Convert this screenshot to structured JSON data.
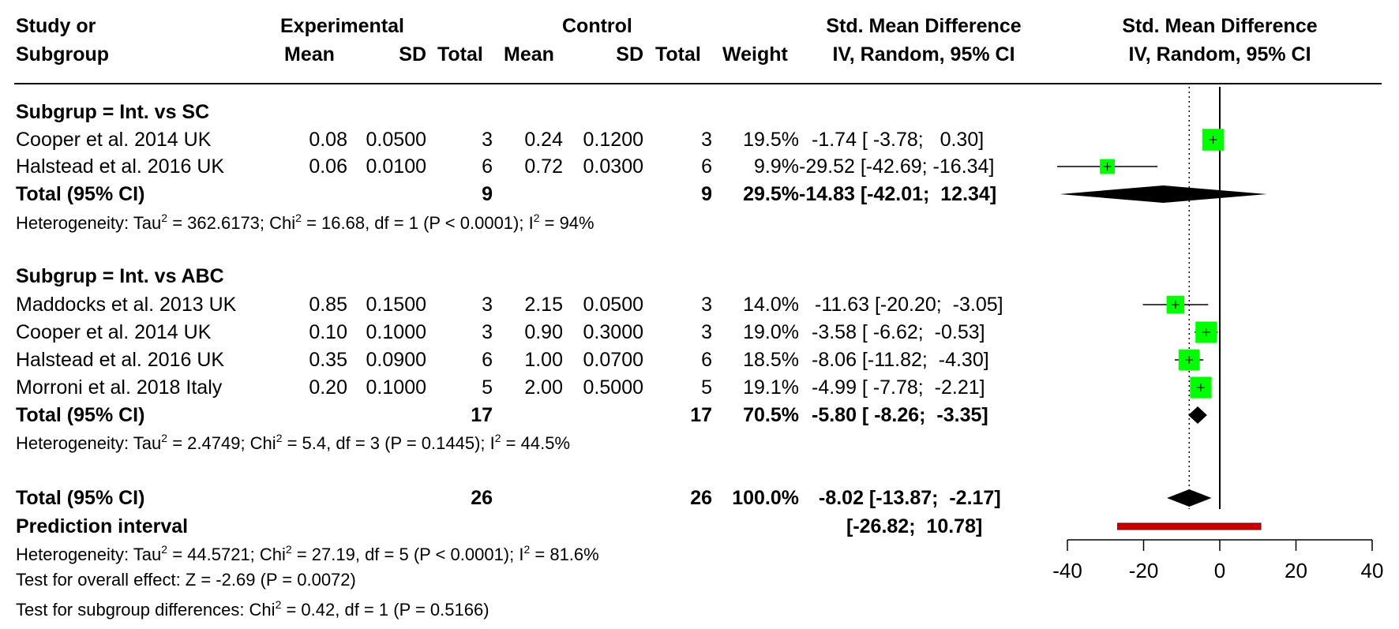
{
  "chart_data": {
    "type": "forest",
    "header": {
      "study_line1": "Study or",
      "study_line2": "Subgroup",
      "experimental": "Experimental",
      "control": "Control",
      "mean": "Mean",
      "sd": "SD",
      "total": "Total",
      "weight": "Weight",
      "smd_line1": "Std. Mean Difference",
      "smd_line2": "IV, Random, 95% CI",
      "plot_line1": "Std. Mean Difference",
      "plot_line2": "IV, Random, 95% CI"
    },
    "xlim": [
      -40,
      40
    ],
    "xticks": [
      -40,
      -20,
      0,
      20,
      40
    ],
    "reference_line": 0,
    "overall_effect_line": -8.02,
    "subgroups": [
      {
        "label": "Subgrup = Int. vs SC",
        "studies": [
          {
            "name": "Cooper et al. 2014 UK",
            "exp_mean": "0.08",
            "exp_sd": "0.0500",
            "exp_total": "3",
            "ctrl_mean": "0.24",
            "ctrl_sd": "0.1200",
            "ctrl_total": "3",
            "weight": "19.5%",
            "ci_text": "-1.74 [ -3.78;   0.30]",
            "smd": -1.74,
            "lower": -3.78,
            "upper": 0.3,
            "w": 19.5
          },
          {
            "name": "Halstead et al. 2016 UK",
            "exp_mean": "0.06",
            "exp_sd": "0.0100",
            "exp_total": "6",
            "ctrl_mean": "0.72",
            "ctrl_sd": "0.0300",
            "ctrl_total": "6",
            "weight": "9.9%",
            "ci_text": "-29.52 [-42.69; -16.34]",
            "smd": -29.52,
            "lower": -42.69,
            "upper": -16.34,
            "w": 9.9
          }
        ],
        "total": {
          "label": "Total (95% CI)",
          "exp_total": "9",
          "ctrl_total": "9",
          "weight": "29.5%",
          "ci_text": "-14.83 [-42.01;  12.34]",
          "smd": -14.83,
          "lower": -42.01,
          "upper": 12.34
        },
        "heterogeneity": {
          "prefix": "Heterogeneity: Tau",
          "sup1": "2",
          "part2": " = 362.6173; Chi",
          "sup2": "2",
          "part3": " = 16.68, df = 1 (P < 0.0001); I",
          "sup3": "2",
          "part4": " = 94%"
        }
      },
      {
        "label": "Subgrup = Int. vs ABC",
        "studies": [
          {
            "name": "Maddocks et al. 2013 UK",
            "exp_mean": "0.85",
            "exp_sd": "0.1500",
            "exp_total": "3",
            "ctrl_mean": "2.15",
            "ctrl_sd": "0.0500",
            "ctrl_total": "3",
            "weight": "14.0%",
            "ci_text": "-11.63 [-20.20;  -3.05]",
            "smd": -11.63,
            "lower": -20.2,
            "upper": -3.05,
            "w": 14.0
          },
          {
            "name": "Cooper et al. 2014 UK",
            "exp_mean": "0.10",
            "exp_sd": "0.1000",
            "exp_total": "3",
            "ctrl_mean": "0.90",
            "ctrl_sd": "0.3000",
            "ctrl_total": "3",
            "weight": "19.0%",
            "ci_text": "-3.58 [ -6.62;  -0.53]",
            "smd": -3.58,
            "lower": -6.62,
            "upper": -0.53,
            "w": 19.0
          },
          {
            "name": "Halstead et al. 2016 UK",
            "exp_mean": "0.35",
            "exp_sd": "0.0900",
            "exp_total": "6",
            "ctrl_mean": "1.00",
            "ctrl_sd": "0.0700",
            "ctrl_total": "6",
            "weight": "18.5%",
            "ci_text": "-8.06 [-11.82;  -4.30]",
            "smd": -8.06,
            "lower": -11.82,
            "upper": -4.3,
            "w": 18.5
          },
          {
            "name": "Morroni et al. 2018 Italy",
            "exp_mean": "0.20",
            "exp_sd": "0.1000",
            "exp_total": "5",
            "ctrl_mean": "2.00",
            "ctrl_sd": "0.5000",
            "ctrl_total": "5",
            "weight": "19.1%",
            "ci_text": "-4.99 [ -7.78;  -2.21]",
            "smd": -4.99,
            "lower": -7.78,
            "upper": -2.21,
            "w": 19.1
          }
        ],
        "total": {
          "label": "Total (95% CI)",
          "exp_total": "17",
          "ctrl_total": "17",
          "weight": "70.5%",
          "ci_text": "-5.80 [ -8.26;  -3.35]",
          "smd": -5.8,
          "lower": -8.26,
          "upper": -3.35
        },
        "heterogeneity": {
          "prefix": "Heterogeneity: Tau",
          "sup1": "2",
          "part2": " = 2.4749; Chi",
          "sup2": "2",
          "part3": " = 5.4, df = 3 (P = 0.1445); I",
          "sup3": "2",
          "part4": " = 44.5%"
        }
      }
    ],
    "overall": {
      "label": "Total (95% CI)",
      "exp_total": "26",
      "ctrl_total": "26",
      "weight": "100.0%",
      "ci_text": "-8.02 [-13.87;  -2.17]",
      "smd": -8.02,
      "lower": -13.87,
      "upper": -2.17
    },
    "prediction": {
      "label": "Prediction interval",
      "ci_text": "[-26.82;  10.78]",
      "lower": -26.82,
      "upper": 10.78
    },
    "overall_heterogeneity": {
      "prefix": "Heterogeneity: Tau",
      "sup1": "2",
      "part2": " = 44.5721; Chi",
      "sup2": "2",
      "part3": " = 27.19, df = 5 (P < 0.0001); I",
      "sup3": "2",
      "part4": " = 81.6%"
    },
    "overall_effect_test": "Test for overall effect: Z = -2.69 (P = 0.0072)",
    "subgroup_test": {
      "prefix": "Test for subgroup differences: Chi",
      "sup": "2",
      "rest": " = 0.42, df = 1 (P = 0.5166)"
    },
    "colors": {
      "study_box": "#00ff00",
      "summary_diamond": "#000000",
      "prediction_bar": "#cc0000",
      "prediction_border": "#660000"
    }
  }
}
